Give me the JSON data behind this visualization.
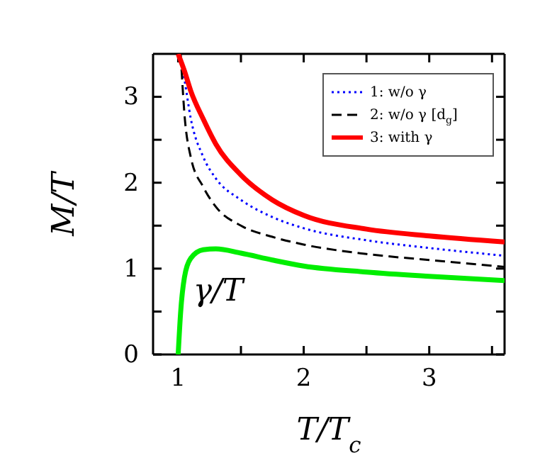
{
  "chart_data": {
    "type": "line",
    "xlabel": "T/T$_{c}$",
    "ylabel": "M/T",
    "annotations": [
      "γ/T"
    ],
    "xlim": [
      0.8,
      3.6
    ],
    "ylim": [
      0,
      3.5
    ],
    "xticks": [
      {
        "value": 1,
        "label": "1"
      },
      {
        "value": 1.5,
        "label": null
      },
      {
        "value": 2,
        "label": "2"
      },
      {
        "value": 2.5,
        "label": null
      },
      {
        "value": 3,
        "label": "3"
      },
      {
        "value": 3.5,
        "label": null
      }
    ],
    "yticks": [
      0,
      {
        "value": 0.5,
        "label": null
      },
      1,
      {
        "value": 1.5,
        "label": null
      },
      2,
      {
        "value": 2.5,
        "label": null
      },
      3
    ],
    "legend": "top right",
    "grid": false,
    "marker": "none",
    "series": [
      {
        "name": "1: w/o γ",
        "color": "#0000ff",
        "line_style": "dotted",
        "x": [
          1.01,
          1.05,
          1.1,
          1.2,
          1.3,
          1.5,
          1.75,
          2,
          2.5,
          3,
          3.6
        ],
        "values": [
          3.5,
          3.2,
          2.75,
          2.3,
          2.05,
          1.8,
          1.6,
          1.47,
          1.33,
          1.24,
          1.15
        ]
      },
      {
        "name": "2: w/o γ  [d$_{g}$]",
        "color": "#000000",
        "line_style": "dashed",
        "x": [
          1.02,
          1.05,
          1.1,
          1.2,
          1.3,
          1.5,
          1.75,
          2,
          2.5,
          3,
          3.6
        ],
        "values": [
          3.5,
          2.8,
          2.3,
          1.95,
          1.72,
          1.5,
          1.37,
          1.28,
          1.17,
          1.1,
          1.02
        ]
      },
      {
        "name": "3: with γ",
        "color": "#ff0000",
        "line_style": "solid",
        "x": [
          1.0,
          1.05,
          1.1,
          1.2,
          1.3,
          1.5,
          1.75,
          2,
          2.5,
          3,
          3.6
        ],
        "values": [
          3.5,
          3.3,
          3.07,
          2.74,
          2.45,
          2.09,
          1.8,
          1.62,
          1.46,
          1.38,
          1.31
        ]
      },
      {
        "color": "#00ee00",
        "line_style": "solid",
        "x": [
          1.0,
          1.02,
          1.05,
          1.1,
          1.2,
          1.3,
          1.5,
          1.75,
          2,
          2.5,
          3,
          3.6
        ],
        "values": [
          0,
          0.5,
          0.9,
          1.12,
          1.22,
          1.23,
          1.18,
          1.1,
          1.03,
          0.96,
          0.91,
          0.86
        ]
      }
    ]
  }
}
